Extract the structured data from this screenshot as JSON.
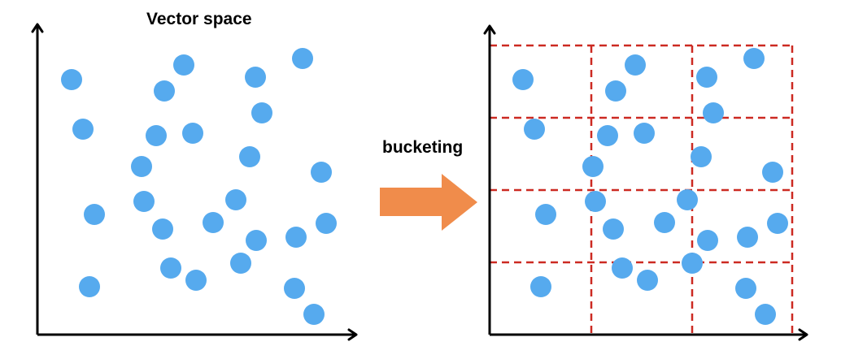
{
  "left_panel": {
    "title": "Vector space"
  },
  "arrow": {
    "label": "bucketing",
    "color": "#F08C4B"
  },
  "right_panel": {
    "grid_color": "#CC2A22",
    "grid": {
      "rows": 4,
      "cols": 3
    }
  },
  "colors": {
    "point": "#56AAEE",
    "axis": "#000000"
  }
}
